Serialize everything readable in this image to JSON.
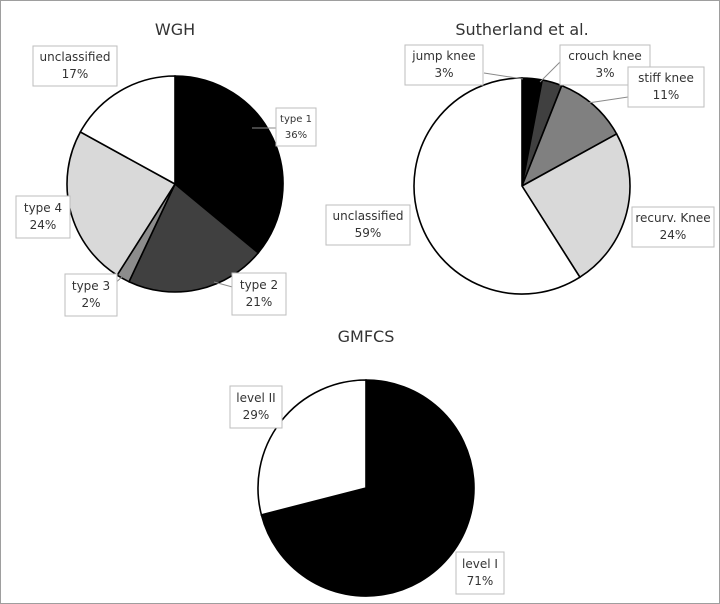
{
  "chart_data": [
    {
      "type": "pie",
      "title": "WGH",
      "slices": [
        {
          "label": "type 1",
          "value": 36,
          "value_label": "36%",
          "color": "#000000"
        },
        {
          "label": "type 2",
          "value": 21,
          "value_label": "21%",
          "color": "#404040"
        },
        {
          "label": "type 3",
          "value": 2,
          "value_label": "2%",
          "color": "#8c8c8c"
        },
        {
          "label": "type 4",
          "value": 24,
          "value_label": "24%",
          "color": "#d9d9d9"
        },
        {
          "label": "unclassified",
          "value": 17,
          "value_label": "17%",
          "color": "#ffffff"
        }
      ]
    },
    {
      "type": "pie",
      "title": "Sutherland et al.",
      "slices": [
        {
          "label": "jump knee",
          "value": 3,
          "value_label": "3%",
          "color": "#000000"
        },
        {
          "label": "crouch knee",
          "value": 3,
          "value_label": "3%",
          "color": "#404040"
        },
        {
          "label": "stiff knee",
          "value": 11,
          "value_label": "11%",
          "color": "#808080"
        },
        {
          "label": "recurv. Knee",
          "value": 24,
          "value_label": "24%",
          "color": "#d9d9d9"
        },
        {
          "label": "unclassified",
          "value": 59,
          "value_label": "59%",
          "color": "#ffffff"
        }
      ]
    },
    {
      "type": "pie",
      "title": "GMFCS",
      "slices": [
        {
          "label": "level I",
          "value": 71,
          "value_label": "71%",
          "color": "#000000"
        },
        {
          "label": "level II",
          "value": 29,
          "value_label": "29%",
          "color": "#ffffff"
        }
      ]
    }
  ]
}
